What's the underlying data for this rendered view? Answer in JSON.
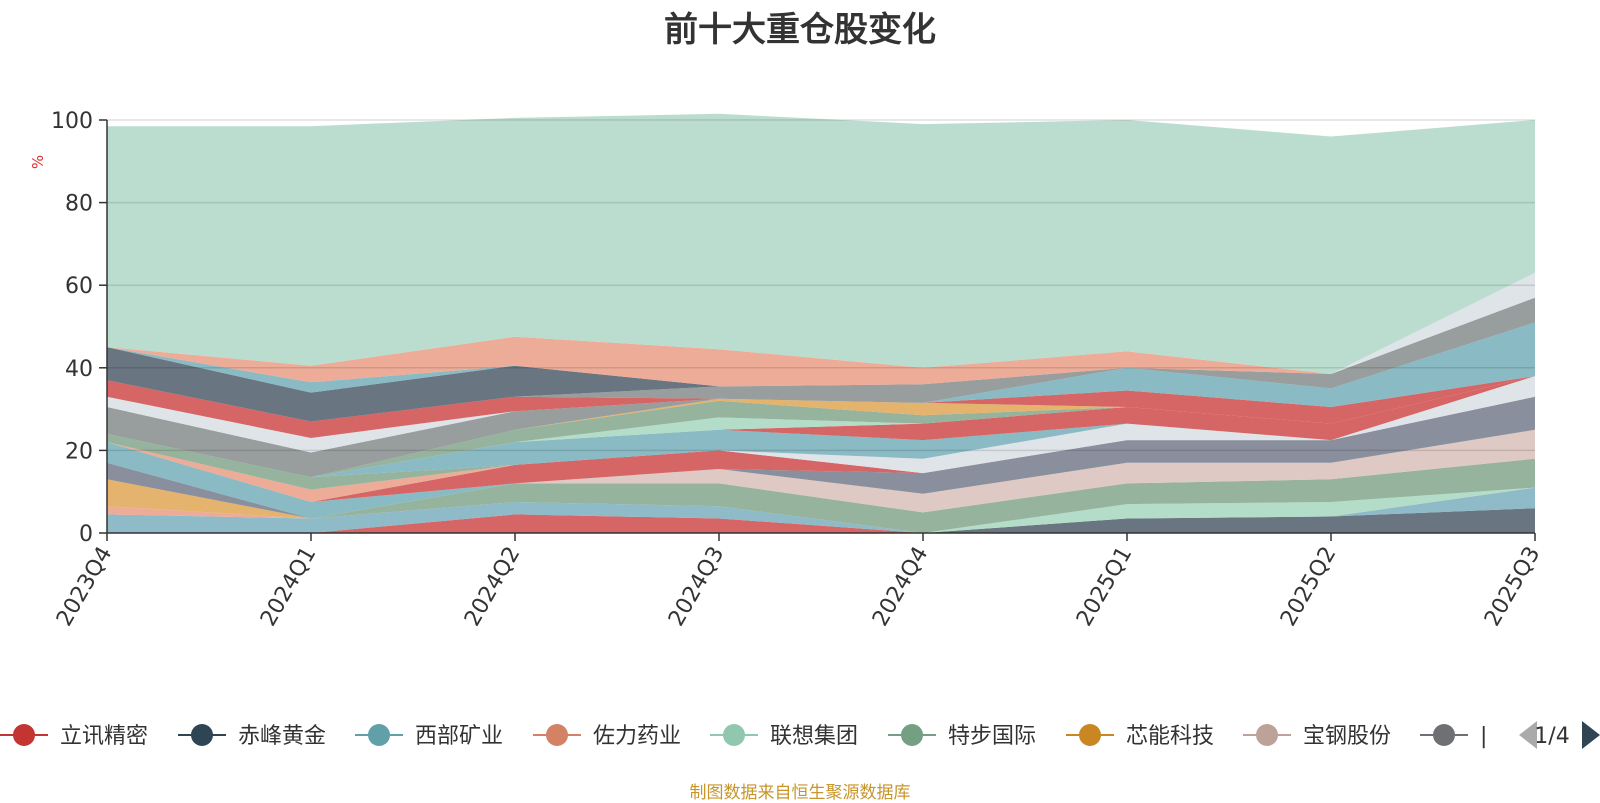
{
  "page": {
    "title": "前十大重仓股变化",
    "source_note": "制图数据来自恒生聚源数据库"
  },
  "legend": {
    "page_indicator": "1/4",
    "prev_icon": "triangle-left-icon",
    "next_icon": "triangle-right-icon",
    "visible_items": [
      "立讯精密",
      "赤峰黄金",
      "西部矿业",
      "佐力药业",
      "联想集团",
      "特步国际",
      "芯能科技",
      "宝钢股份",
      "|"
    ]
  },
  "chart_data": {
    "type": "area",
    "stacked": true,
    "title": "前十大重仓股变化",
    "xlabel": "",
    "ylabel": "%",
    "ylim": [
      0,
      100
    ],
    "yticks": [
      0,
      20,
      40,
      60,
      80,
      100
    ],
    "grid": true,
    "legend_position": "bottom",
    "categories": [
      "2023Q4",
      "2024Q1",
      "2024Q2",
      "2024Q3",
      "2024Q4",
      "2025Q1",
      "2025Q2",
      "2025Q3"
    ],
    "series": [
      {
        "color": "#d05050",
        "values": [
          0,
          0,
          4.5,
          3.5,
          0,
          0,
          0,
          0
        ]
      },
      {
        "color": "#546270",
        "values": [
          0,
          0,
          0,
          0,
          0,
          3.5,
          4,
          6
        ]
      },
      {
        "color": "#7fb0c0",
        "values": [
          4.5,
          3.5,
          3,
          3,
          0,
          0,
          0,
          5
        ]
      },
      {
        "color": "#a8d8c0",
        "values": [
          0,
          0,
          0,
          0,
          0,
          3.5,
          3.5,
          0
        ]
      },
      {
        "color": "#e9a08a",
        "values": [
          2,
          0,
          0,
          0,
          0,
          0,
          0,
          0
        ]
      },
      {
        "color": "#88a890",
        "values": [
          0,
          0,
          4.5,
          5.5,
          5,
          5,
          5.5,
          7
        ]
      },
      {
        "color": "#d9c2bc",
        "values": [
          0,
          0,
          0,
          3.5,
          4.5,
          5,
          4,
          7
        ]
      },
      {
        "color": "#e0a85a",
        "values": [
          6.5,
          0,
          0,
          0,
          0,
          0,
          0,
          0
        ]
      },
      {
        "color": "#7a8090",
        "values": [
          4,
          0,
          0,
          0,
          5,
          5.5,
          5.5,
          8
        ]
      },
      {
        "color": "#7ab0bc",
        "values": [
          5,
          4,
          0,
          0,
          0,
          0,
          0,
          0
        ]
      },
      {
        "color": "#d05050",
        "values": [
          0,
          0,
          4.5,
          4.5,
          0,
          0,
          0,
          0
        ]
      },
      {
        "color": "#dbe0e6",
        "values": [
          0,
          0,
          0,
          0,
          3.5,
          4,
          0,
          5
        ]
      },
      {
        "color": "#e9a08a",
        "values": [
          0,
          3,
          0,
          0,
          0,
          0,
          0,
          0
        ]
      },
      {
        "color": "#88a890",
        "values": [
          2,
          3,
          0,
          0,
          0,
          0,
          0,
          0
        ]
      },
      {
        "color": "#7ab0bc",
        "values": [
          0,
          0,
          5.5,
          5,
          4.5,
          0,
          0,
          0
        ]
      },
      {
        "color": "#d05050",
        "values": [
          0,
          0,
          0,
          0,
          4,
          4,
          4,
          0
        ]
      },
      {
        "color": "#a8d8c0",
        "values": [
          0,
          0,
          0,
          3,
          0,
          0,
          0,
          0
        ]
      },
      {
        "color": "#88a890",
        "values": [
          0,
          0,
          3,
          4,
          2,
          0,
          0,
          0
        ]
      },
      {
        "color": "#e0a85a",
        "values": [
          0,
          0,
          0,
          0.5,
          3,
          0,
          0,
          0
        ]
      },
      {
        "color": "#8a9090",
        "values": [
          6.5,
          6,
          4.5,
          0,
          0,
          0,
          0,
          0
        ]
      },
      {
        "color": "#dbe0e6",
        "values": [
          2.5,
          3.5,
          0,
          0,
          0,
          0,
          0,
          0
        ]
      },
      {
        "color": "#d05050",
        "values": [
          4,
          4,
          3.5,
          0,
          0,
          4,
          4,
          0
        ]
      },
      {
        "color": "#7ab0bc",
        "values": [
          0,
          0,
          0,
          0,
          0,
          5.5,
          4.5,
          13
        ]
      },
      {
        "color": "#8a9090",
        "values": [
          0,
          0,
          0,
          3,
          4.5,
          0,
          3.5,
          6
        ]
      },
      {
        "color": "#dbe0e6",
        "values": [
          0,
          0,
          0,
          0,
          0,
          0,
          0,
          6
        ]
      },
      {
        "color": "#546270",
        "values": [
          8,
          7,
          7.5,
          0,
          0,
          0,
          0,
          0
        ]
      },
      {
        "color": "#7ab0bc",
        "values": [
          0,
          2.5,
          0,
          0,
          0,
          0,
          0,
          0
        ]
      },
      {
        "color": "#e9a08a",
        "values": [
          0,
          4,
          7,
          9,
          4,
          4,
          0,
          0
        ]
      },
      {
        "color": "#b2d8c8",
        "values": [
          53.5,
          58,
          53,
          57,
          59,
          56,
          57.5,
          37
        ]
      }
    ]
  }
}
